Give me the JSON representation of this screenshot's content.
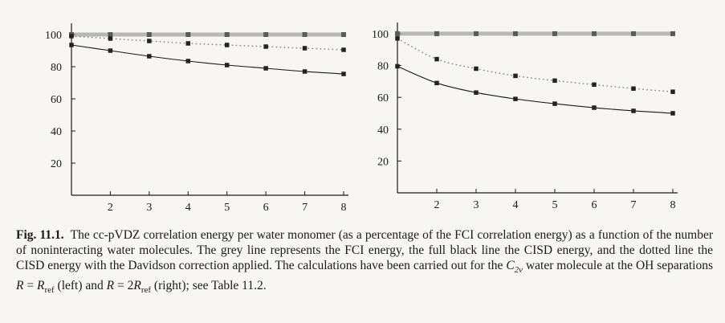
{
  "chart_data": [
    {
      "type": "line",
      "panel": "left",
      "x": [
        1,
        2,
        3,
        4,
        5,
        6,
        7,
        8
      ],
      "xticks": [
        "2",
        "3",
        "4",
        "5",
        "6",
        "7",
        "8"
      ],
      "yticks": [
        "100",
        "80",
        "60",
        "40",
        "20"
      ],
      "xlim": [
        1,
        8
      ],
      "ylim": [
        0,
        105
      ],
      "grid": false,
      "colors": {
        "fci": "#9c9c9c",
        "cisd": "#1a1a1a",
        "davidson": "#7a7a7a"
      },
      "series": [
        {
          "key": "fci",
          "style": "grey",
          "values": [
            100,
            100,
            100,
            100,
            100,
            100,
            100,
            100
          ]
        },
        {
          "key": "davidson",
          "style": "dotted",
          "values": [
            99,
            97.5,
            96,
            94.5,
            93.5,
            92.5,
            91.5,
            90.5
          ]
        },
        {
          "key": "cisd",
          "style": "solid",
          "values": [
            93.5,
            90,
            86.5,
            83.5,
            81,
            79,
            77,
            75.5
          ]
        }
      ]
    },
    {
      "type": "line",
      "panel": "right",
      "x": [
        1,
        2,
        3,
        4,
        5,
        6,
        7,
        8
      ],
      "xticks": [
        "2",
        "3",
        "4",
        "5",
        "6",
        "7",
        "8"
      ],
      "yticks": [
        "100",
        "80",
        "60",
        "40",
        "20"
      ],
      "xlim": [
        1,
        8
      ],
      "ylim": [
        0,
        105
      ],
      "grid": false,
      "colors": {
        "fci": "#9c9c9c",
        "cisd": "#1a1a1a",
        "davidson": "#7a7a7a"
      },
      "series": [
        {
          "key": "fci",
          "style": "grey",
          "values": [
            100,
            100,
            100,
            100,
            100,
            100,
            100,
            100
          ]
        },
        {
          "key": "davidson",
          "style": "dotted",
          "values": [
            97,
            84,
            78,
            73.5,
            70.5,
            68,
            65.5,
            63.5
          ]
        },
        {
          "key": "cisd",
          "style": "solid",
          "values": [
            79.5,
            69,
            63,
            59,
            56,
            53.5,
            51.5,
            50
          ]
        }
      ]
    }
  ],
  "caption": {
    "label": "Fig. 11.1.",
    "text_1": "The cc-pVDZ correlation energy per water monomer (as a percentage of the FCI correlation energy) as a function of the number of noninteracting water molecules. The grey line represents the FCI energy, the full black line the CISD energy, and the dotted line the CISD energy with the Davidson correction applied. The calculations have been carried out for the ",
    "mol_c": "C",
    "mol_sub": "2v",
    "text_2": " water molecule at the OH separations ",
    "r1": "R",
    "eq1": " = ",
    "r2": "R",
    "r2_sub": "ref",
    "text_3": " (left) and ",
    "r3": "R",
    "eq2": " = 2",
    "r4": "R",
    "r4_sub": "ref",
    "text_4": " (right); see Table 11.2."
  }
}
